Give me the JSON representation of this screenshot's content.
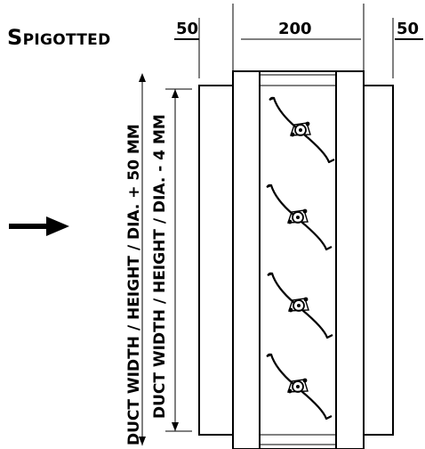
{
  "title": "Spigotted",
  "dimensions": {
    "left_spigot": "50",
    "body_width": "200",
    "right_spigot": "50"
  },
  "vertical_labels": {
    "outer": "DUCT WIDTH / HEIGHT / DIA. + 50 MM",
    "inner": "DUCT WIDTH / HEIGHT / DIA. - 4 MM"
  },
  "blade_count": 4,
  "airflow_direction": "right",
  "icons": {
    "airflow": "arrow-right-icon"
  }
}
